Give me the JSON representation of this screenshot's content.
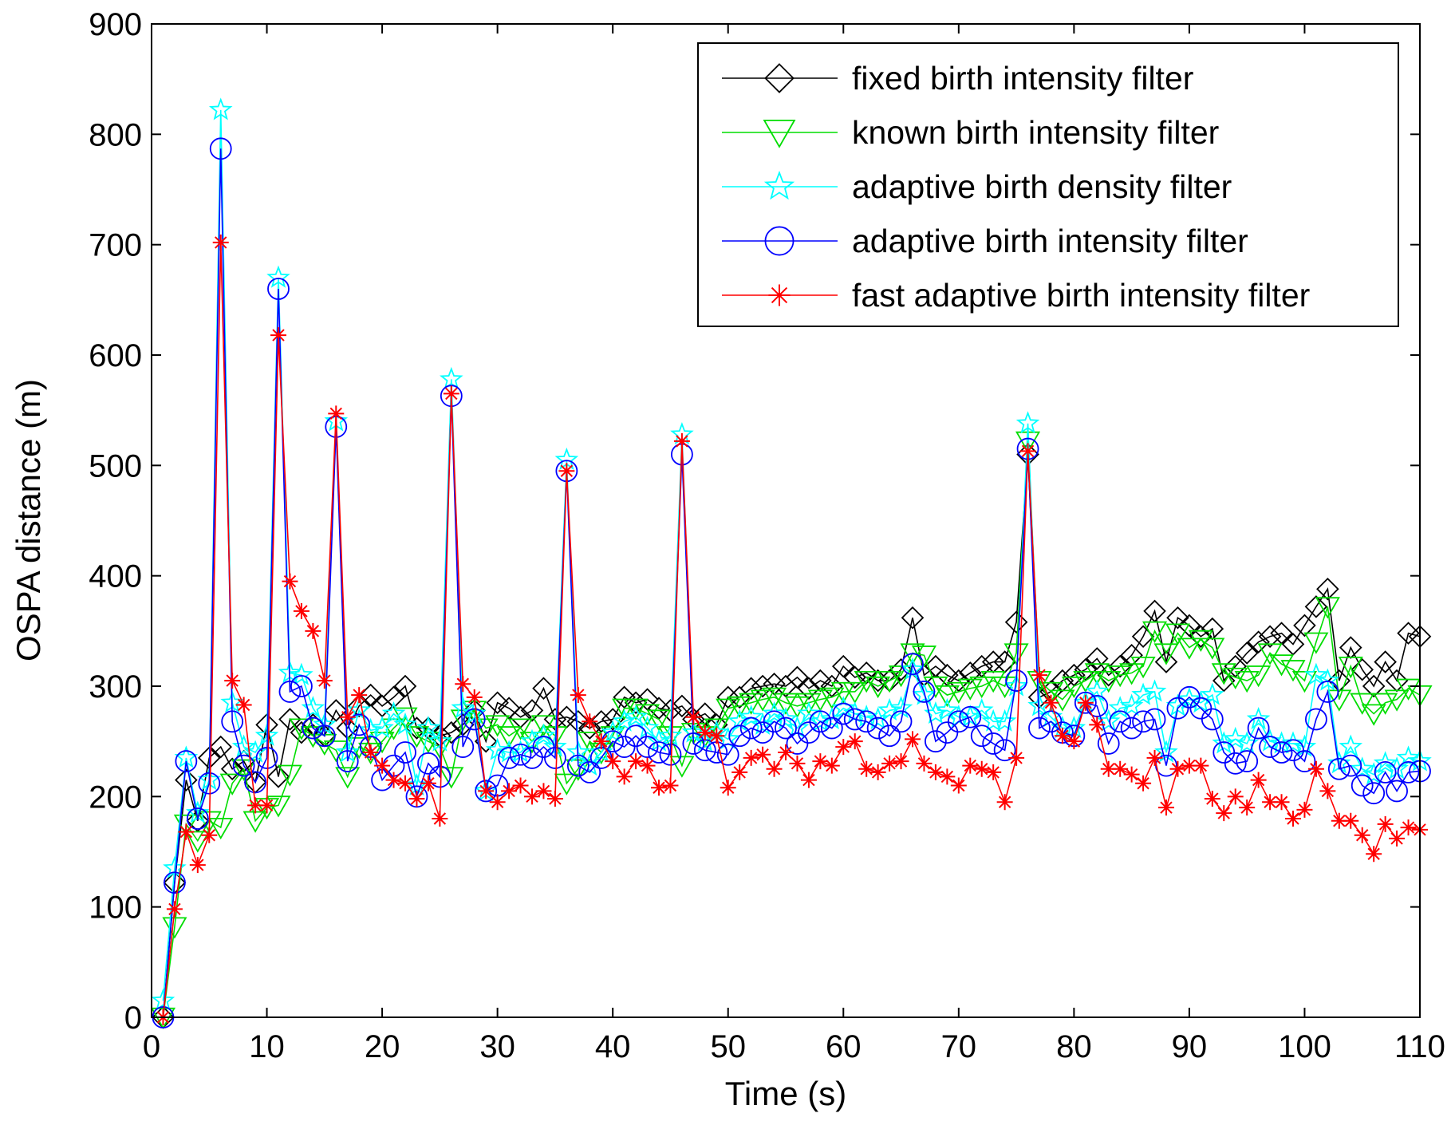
{
  "chart_data": {
    "type": "line",
    "title": "",
    "xlabel": "Time (s)",
    "ylabel": "OSPA distance (m)",
    "xlim": [
      0,
      110
    ],
    "ylim": [
      0,
      900
    ],
    "xticks": [
      0,
      10,
      20,
      30,
      40,
      50,
      60,
      70,
      80,
      90,
      100,
      110
    ],
    "yticks": [
      0,
      100,
      200,
      300,
      400,
      500,
      600,
      700,
      800,
      900
    ],
    "grid": false,
    "legend_position": "top-right",
    "x": [
      1,
      2,
      3,
      4,
      5,
      6,
      7,
      8,
      9,
      10,
      11,
      12,
      13,
      14,
      15,
      16,
      17,
      18,
      19,
      20,
      21,
      22,
      23,
      24,
      25,
      26,
      27,
      28,
      29,
      30,
      31,
      32,
      33,
      34,
      35,
      36,
      37,
      38,
      39,
      40,
      41,
      42,
      43,
      44,
      45,
      46,
      47,
      48,
      49,
      50,
      51,
      52,
      53,
      54,
      55,
      56,
      57,
      58,
      59,
      60,
      61,
      62,
      63,
      64,
      65,
      66,
      67,
      68,
      69,
      70,
      71,
      72,
      73,
      74,
      75,
      76,
      77,
      78,
      79,
      80,
      81,
      82,
      83,
      84,
      85,
      86,
      87,
      88,
      89,
      90,
      91,
      92,
      93,
      94,
      95,
      96,
      97,
      98,
      99,
      100,
      101,
      102,
      103,
      104,
      105,
      106,
      107,
      108,
      109,
      110
    ],
    "series": [
      {
        "name": "fixed birth intensity filter",
        "color": "#000000",
        "marker": "diamond",
        "values": [
          0,
          122,
          215,
          178,
          235,
          245,
          225,
          232,
          213,
          265,
          218,
          270,
          258,
          265,
          255,
          278,
          262,
          282,
          292,
          282,
          290,
          300,
          262,
          262,
          255,
          258,
          265,
          278,
          250,
          285,
          280,
          272,
          278,
          298,
          270,
          272,
          268,
          262,
          268,
          270,
          290,
          285,
          288,
          280,
          278,
          282,
          270,
          275,
          265,
          290,
          290,
          298,
          300,
          302,
          300,
          308,
          298,
          305,
          300,
          318,
          308,
          312,
          305,
          305,
          315,
          362,
          310,
          318,
          310,
          305,
          312,
          318,
          322,
          322,
          358,
          510,
          290,
          295,
          305,
          310,
          315,
          325,
          310,
          318,
          328,
          345,
          368,
          322,
          362,
          355,
          345,
          352,
          305,
          318,
          330,
          340,
          345,
          348,
          338,
          355,
          372,
          388,
          305,
          335,
          315,
          300,
          322,
          305,
          348,
          345
        ]
      },
      {
        "name": "known birth intensity filter",
        "color": "#00dd00",
        "marker": "triangle-down",
        "values": [
          0,
          82,
          175,
          160,
          178,
          172,
          212,
          225,
          178,
          190,
          192,
          220,
          262,
          255,
          248,
          242,
          218,
          245,
          240,
          250,
          262,
          272,
          255,
          250,
          245,
          218,
          270,
          278,
          262,
          265,
          255,
          262,
          250,
          265,
          255,
          212,
          225,
          250,
          240,
          255,
          280,
          280,
          275,
          270,
          255,
          228,
          258,
          255,
          262,
          280,
          282,
          285,
          288,
          290,
          285,
          282,
          285,
          288,
          290,
          295,
          295,
          305,
          300,
          305,
          310,
          330,
          328,
          300,
          292,
          295,
          298,
          300,
          305,
          300,
          330,
          522,
          305,
          295,
          288,
          300,
          305,
          312,
          305,
          310,
          312,
          318,
          350,
          330,
          348,
          335,
          342,
          335,
          312,
          308,
          305,
          310,
          330,
          320,
          315,
          305,
          340,
          372,
          288,
          318,
          285,
          275,
          285,
          288,
          298,
          292
        ]
      },
      {
        "name": "adaptive birth density filter",
        "color": "#00ffff",
        "marker": "star",
        "values": [
          15,
          135,
          235,
          185,
          215,
          822,
          285,
          245,
          240,
          255,
          670,
          312,
          310,
          280,
          265,
          540,
          240,
          278,
          260,
          262,
          275,
          265,
          210,
          262,
          250,
          578,
          280,
          275,
          205,
          242,
          240,
          240,
          250,
          255,
          245,
          505,
          240,
          228,
          240,
          258,
          268,
          272,
          262,
          250,
          255,
          528,
          258,
          250,
          258,
          252,
          268,
          272,
          265,
          275,
          270,
          262,
          275,
          268,
          270,
          280,
          275,
          272,
          270,
          278,
          280,
          315,
          292,
          275,
          278,
          272,
          272,
          278,
          268,
          268,
          300,
          538,
          282,
          272,
          262,
          262,
          285,
          295,
          268,
          280,
          282,
          292,
          295,
          240,
          282,
          288,
          285,
          292,
          248,
          252,
          248,
          270,
          250,
          248,
          248,
          245,
          310,
          305,
          230,
          245,
          225,
          220,
          230,
          225,
          235,
          232
        ]
      },
      {
        "name": "adaptive birth intensity filter",
        "color": "#0000ff",
        "marker": "circle",
        "values": [
          0,
          122,
          232,
          180,
          212,
          787,
          268,
          228,
          213,
          235,
          660,
          295,
          300,
          262,
          255,
          535,
          232,
          265,
          245,
          215,
          228,
          240,
          200,
          230,
          218,
          563,
          245,
          270,
          205,
          210,
          235,
          238,
          235,
          245,
          235,
          495,
          228,
          222,
          235,
          250,
          245,
          255,
          245,
          240,
          238,
          510,
          248,
          242,
          240,
          238,
          255,
          262,
          258,
          268,
          262,
          248,
          258,
          268,
          262,
          275,
          270,
          268,
          262,
          255,
          268,
          320,
          295,
          250,
          258,
          268,
          272,
          255,
          248,
          242,
          305,
          515,
          262,
          268,
          258,
          255,
          285,
          282,
          248,
          268,
          262,
          268,
          270,
          228,
          280,
          290,
          280,
          270,
          240,
          230,
          232,
          262,
          245,
          240,
          242,
          232,
          270,
          295,
          225,
          228,
          210,
          203,
          222,
          205,
          222,
          223
        ]
      },
      {
        "name": "fast adaptive birth intensity filter",
        "color": "#ff0000",
        "marker": "asterisk",
        "values": [
          0,
          98,
          168,
          138,
          165,
          702,
          305,
          283,
          192,
          192,
          618,
          395,
          368,
          350,
          305,
          547,
          272,
          292,
          240,
          228,
          215,
          212,
          198,
          212,
          180,
          565,
          302,
          290,
          205,
          195,
          205,
          210,
          200,
          205,
          198,
          495,
          292,
          268,
          250,
          232,
          218,
          232,
          228,
          208,
          210,
          522,
          272,
          258,
          255,
          208,
          222,
          235,
          238,
          225,
          240,
          230,
          215,
          232,
          228,
          245,
          250,
          225,
          222,
          230,
          232,
          252,
          230,
          222,
          218,
          210,
          228,
          225,
          222,
          195,
          235,
          513,
          310,
          285,
          255,
          250,
          285,
          265,
          225,
          225,
          220,
          212,
          235,
          190,
          225,
          228,
          228,
          198,
          185,
          200,
          190,
          215,
          195,
          195,
          180,
          188,
          225,
          205,
          178,
          178,
          165,
          148,
          175,
          162,
          172,
          170
        ]
      }
    ]
  }
}
